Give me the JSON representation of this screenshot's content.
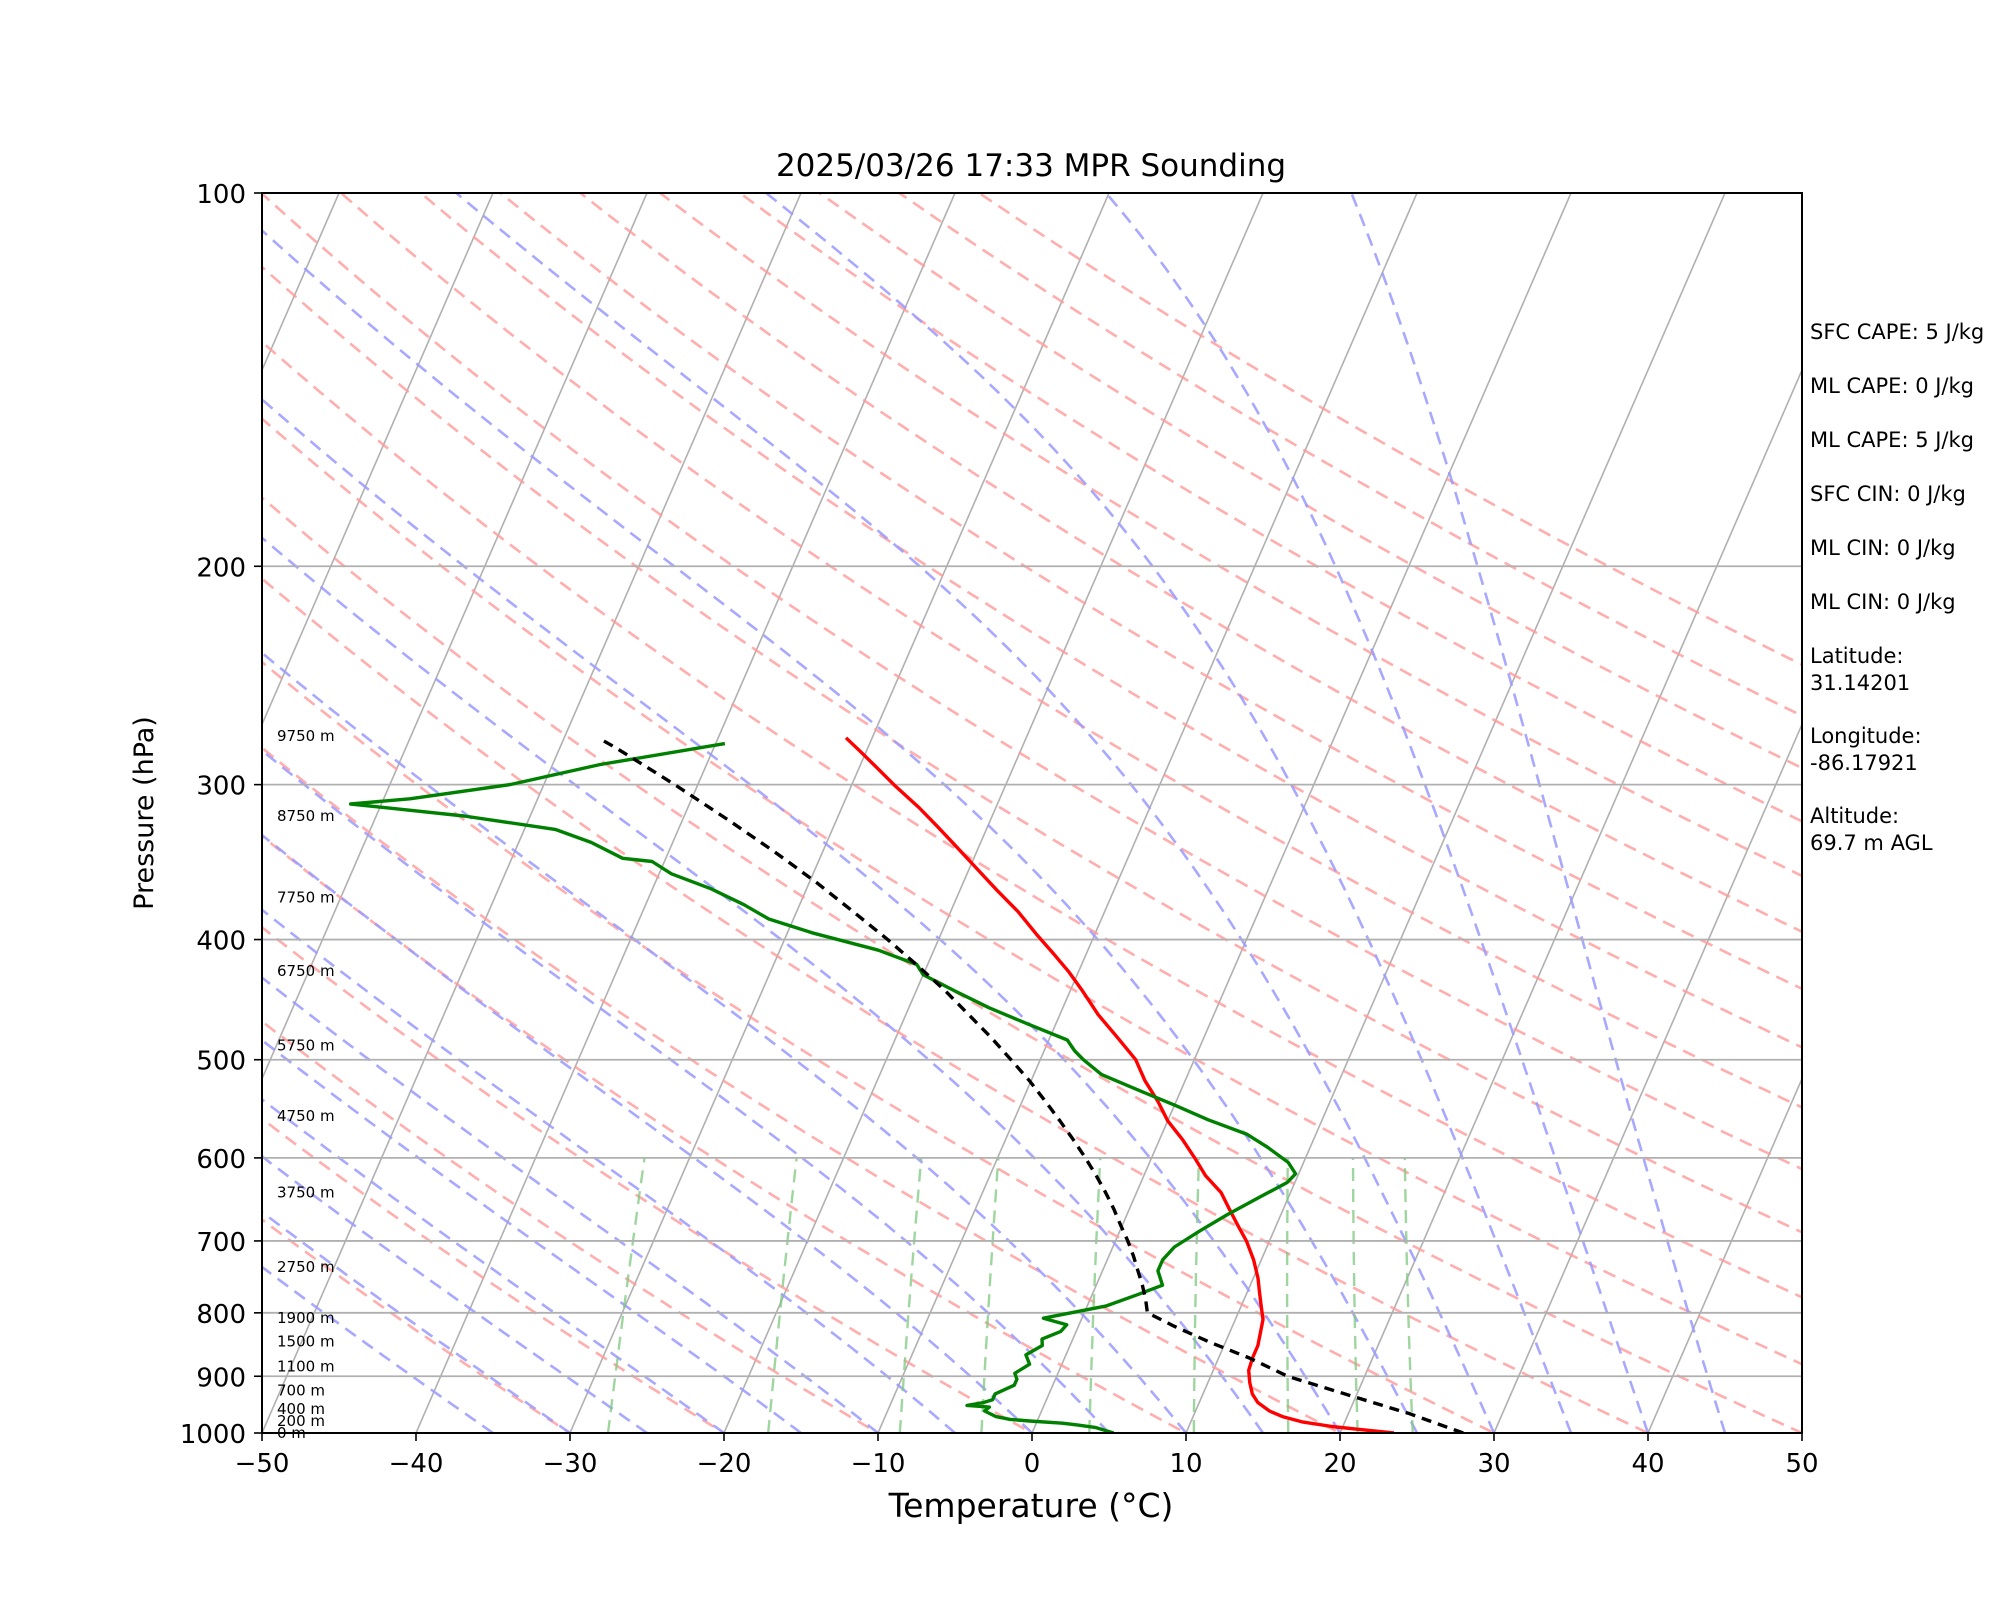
{
  "chart_data": {
    "type": "line",
    "title": "2025/03/26 17:33 MPR Sounding",
    "xlabel": "Temperature (°C)",
    "ylabel": "Pressure (hPa)",
    "xlim": [
      -50,
      50
    ],
    "ylim": [
      1000,
      100
    ],
    "y_scale": "log",
    "skew": "skew-T log-P diagram",
    "x_ticks": [
      "−50",
      "−40",
      "−30",
      "−20",
      "−10",
      "0",
      "10",
      "20",
      "30",
      "40",
      "50"
    ],
    "y_ticks": [
      "100",
      "200",
      "300",
      "400",
      "500",
      "600",
      "700",
      "800",
      "900",
      "1000"
    ],
    "height_labels": [
      {
        "text": "0 m",
        "p": 1000
      },
      {
        "text": "200 m",
        "p": 978
      },
      {
        "text": "400 m",
        "p": 956
      },
      {
        "text": "700 m",
        "p": 924
      },
      {
        "text": "1100 m",
        "p": 884
      },
      {
        "text": "1500 m",
        "p": 844
      },
      {
        "text": "1900 m",
        "p": 808
      },
      {
        "text": "2750 m",
        "p": 735
      },
      {
        "text": "3750 m",
        "p": 640
      },
      {
        "text": "4750 m",
        "p": 555
      },
      {
        "text": "5750 m",
        "p": 487
      },
      {
        "text": "6750 m",
        "p": 424
      },
      {
        "text": "7750 m",
        "p": 370
      },
      {
        "text": "8750 m",
        "p": 318
      },
      {
        "text": "9750 m",
        "p": 274
      }
    ],
    "series": [
      {
        "role": "temperature",
        "color": "#ff0000",
        "points": [
          [
            23.5,
            1000
          ],
          [
            21.0,
            993
          ],
          [
            19.3,
            988
          ],
          [
            17.3,
            980
          ],
          [
            15.8,
            970
          ],
          [
            14.8,
            960
          ],
          [
            13.8,
            945
          ],
          [
            13.2,
            930
          ],
          [
            12.7,
            910
          ],
          [
            12.3,
            890
          ],
          [
            12.2,
            870
          ],
          [
            12.2,
            850
          ],
          [
            12.0,
            830
          ],
          [
            11.8,
            810
          ],
          [
            11.3,
            790
          ],
          [
            10.8,
            770
          ],
          [
            10.3,
            750
          ],
          [
            9.5,
            725
          ],
          [
            8.5,
            700
          ],
          [
            7.5,
            680
          ],
          [
            6.5,
            660
          ],
          [
            5.5,
            640
          ],
          [
            4.0,
            620
          ],
          [
            2.8,
            600
          ],
          [
            1.5,
            580
          ],
          [
            0.0,
            560
          ],
          [
            -1.2,
            540
          ],
          [
            -2.6,
            520
          ],
          [
            -3.8,
            500
          ],
          [
            -5.6,
            480
          ],
          [
            -7.5,
            460
          ],
          [
            -9.2,
            440
          ],
          [
            -10.6,
            425
          ],
          [
            -12.2,
            410
          ],
          [
            -13.8,
            396
          ],
          [
            -15.6,
            380
          ],
          [
            -17.6,
            365
          ],
          [
            -19.6,
            350
          ],
          [
            -21.4,
            337
          ],
          [
            -23.3,
            324
          ],
          [
            -25.0,
            313
          ],
          [
            -27.1,
            301
          ],
          [
            -28.8,
            291
          ],
          [
            -30.4,
            282
          ],
          [
            -31.7,
            275
          ]
        ]
      },
      {
        "role": "dewpoint",
        "color": "#008000",
        "points": [
          [
            5.3,
            1000
          ],
          [
            4.0,
            990
          ],
          [
            2.7,
            985
          ],
          [
            1.7,
            982
          ],
          [
            -0.5,
            978
          ],
          [
            -1.8,
            975
          ],
          [
            -2.8,
            970
          ],
          [
            -3.7,
            960
          ],
          [
            -3.5,
            953
          ],
          [
            -5.0,
            950
          ],
          [
            -4.0,
            945
          ],
          [
            -3.5,
            940
          ],
          [
            -3.5,
            930
          ],
          [
            -2.5,
            915
          ],
          [
            -2.5,
            905
          ],
          [
            -2.8,
            895
          ],
          [
            -2.1,
            880
          ],
          [
            -2.6,
            865
          ],
          [
            -1.8,
            850
          ],
          [
            -2.0,
            840
          ],
          [
            -1.0,
            828
          ],
          [
            -0.8,
            818
          ],
          [
            -2.5,
            808
          ],
          [
            1.2,
            790
          ],
          [
            3.0,
            773
          ],
          [
            4.3,
            760
          ],
          [
            3.6,
            740
          ],
          [
            3.6,
            725
          ],
          [
            4.0,
            708
          ],
          [
            5.2,
            687
          ],
          [
            6.5,
            667
          ],
          [
            8.0,
            647
          ],
          [
            9.5,
            628
          ],
          [
            9.8,
            618
          ],
          [
            9.0,
            605
          ],
          [
            7.2,
            588
          ],
          [
            5.5,
            574
          ],
          [
            2.6,
            559
          ],
          [
            0.0,
            544
          ],
          [
            -2.6,
            530
          ],
          [
            -5.6,
            514
          ],
          [
            -7.2,
            500
          ],
          [
            -8.0,
            492
          ],
          [
            -8.8,
            482
          ],
          [
            -11.8,
            468
          ],
          [
            -14.8,
            454
          ],
          [
            -17.5,
            440
          ],
          [
            -20.0,
            427
          ],
          [
            -20.7,
            419
          ],
          [
            -23.6,
            408
          ],
          [
            -28.4,
            395
          ],
          [
            -31.6,
            385
          ],
          [
            -33.6,
            375
          ],
          [
            -36.2,
            364
          ],
          [
            -39.2,
            354
          ],
          [
            -40.8,
            346
          ],
          [
            -42.8,
            344
          ],
          [
            -45.3,
            334
          ],
          [
            -48.0,
            326
          ],
          [
            -54.3,
            318
          ],
          [
            -62.0,
            311
          ],
          [
            -58.3,
            308
          ],
          [
            -52.2,
            300
          ],
          [
            -46.9,
            289
          ],
          [
            -39.4,
            278
          ]
        ]
      },
      {
        "role": "parcel",
        "color": "#000000",
        "style": "dashed",
        "points": [
          [
            28.0,
            1000
          ],
          [
            24.0,
            965
          ],
          [
            19.2,
            930
          ],
          [
            15.0,
            900
          ],
          [
            12.0,
            870
          ],
          [
            9.0,
            845
          ],
          [
            6.2,
            820
          ],
          [
            4.1,
            800
          ],
          [
            3.6,
            780
          ],
          [
            3.0,
            760
          ],
          [
            2.3,
            740
          ],
          [
            1.6,
            720
          ],
          [
            0.8,
            700
          ],
          [
            -0.1,
            680
          ],
          [
            -1.0,
            660
          ],
          [
            -2.0,
            640
          ],
          [
            -3.1,
            620
          ],
          [
            -4.3,
            600
          ],
          [
            -5.6,
            580
          ],
          [
            -7.0,
            560
          ],
          [
            -8.5,
            540
          ],
          [
            -10.1,
            520
          ],
          [
            -11.9,
            500
          ],
          [
            -13.8,
            480
          ],
          [
            -15.9,
            460
          ],
          [
            -18.1,
            440
          ],
          [
            -20.6,
            420
          ],
          [
            -23.3,
            400
          ],
          [
            -26.3,
            380
          ],
          [
            -29.5,
            360
          ],
          [
            -33.1,
            340
          ],
          [
            -37.1,
            320
          ],
          [
            -41.5,
            300
          ],
          [
            -46.4,
            280
          ],
          [
            -47.8,
            275
          ]
        ]
      }
    ],
    "background_lines": {
      "isotherms_C": [
        -100,
        -90,
        -80,
        -70,
        -60,
        -50,
        -40,
        -30,
        -20,
        -10,
        0,
        10,
        20,
        30,
        40,
        50
      ],
      "dry_adiabats_C": [
        -30,
        -20,
        -10,
        0,
        10,
        20,
        30,
        40,
        50,
        60,
        70,
        80,
        90,
        100,
        110,
        120,
        130,
        140,
        150,
        160,
        170,
        180
      ],
      "moist_adiabats_C": [
        -35,
        -30,
        -25,
        -20,
        -15,
        -10,
        -5,
        0,
        5,
        10,
        15,
        20,
        25,
        30,
        35,
        40,
        45
      ],
      "mixing_ratios_gkg": [
        0.4,
        1,
        2,
        3,
        5,
        8,
        12,
        16,
        20
      ],
      "colors": {
        "grid": "#b0b0b0",
        "dry_adiabat": "#ff9999",
        "moist_adiabat": "#9999ff",
        "mixing_ratio": "#7fc87f"
      }
    },
    "grid": true
  },
  "side_info": {
    "sfc_cape": "SFC CAPE: 5 J/kg",
    "ml_cape_1": "ML CAPE: 0 J/kg",
    "ml_cape_2": "ML CAPE: 5 J/kg",
    "sfc_cin": "SFC CIN: 0 J/kg",
    "ml_cin_1": "ML CIN: 0 J/kg",
    "ml_cin_2": "ML CIN: 0 J/kg",
    "latitude_label": "Latitude:",
    "latitude_value": "31.14201",
    "longitude_label": "Longitude:",
    "longitude_value": "-86.17921",
    "altitude_label": "Altitude:",
    "altitude_value": "69.7 m AGL"
  }
}
